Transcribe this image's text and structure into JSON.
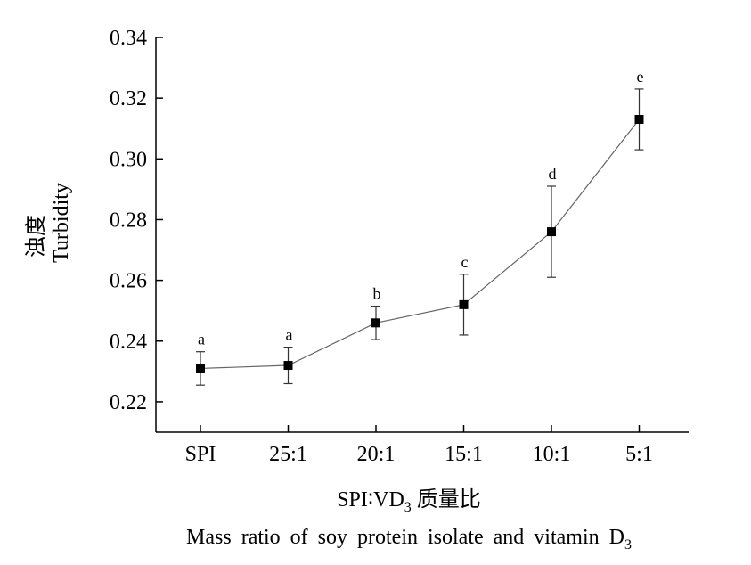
{
  "chart_data": {
    "type": "line",
    "categories": [
      "SPI",
      "25:1",
      "20:1",
      "15:1",
      "10:1",
      "5:1"
    ],
    "values": [
      0.231,
      0.232,
      0.246,
      0.252,
      0.276,
      0.313
    ],
    "error": [
      0.0055,
      0.006,
      0.0055,
      0.01,
      0.015,
      0.01
    ],
    "annotations": [
      "a",
      "a",
      "b",
      "c",
      "d",
      "e"
    ],
    "ylabel_cn": "浊度",
    "ylabel_en": "Turbidity",
    "xlabel_cn": {
      "prefix": "SPI∶VD",
      "sub": "3",
      "suffix": " 质量比"
    },
    "xlabel_en": {
      "main": "Mass ratio of soy protein isolate and vitamin D",
      "sub": "3"
    },
    "ylim": [
      0.21,
      0.34
    ],
    "yticks": [
      "0.22",
      "0.24",
      "0.26",
      "0.28",
      "0.30",
      "0.32",
      "0.34"
    ],
    "grid": false,
    "colors": {
      "line": "#666666",
      "marker": "#000000"
    }
  }
}
